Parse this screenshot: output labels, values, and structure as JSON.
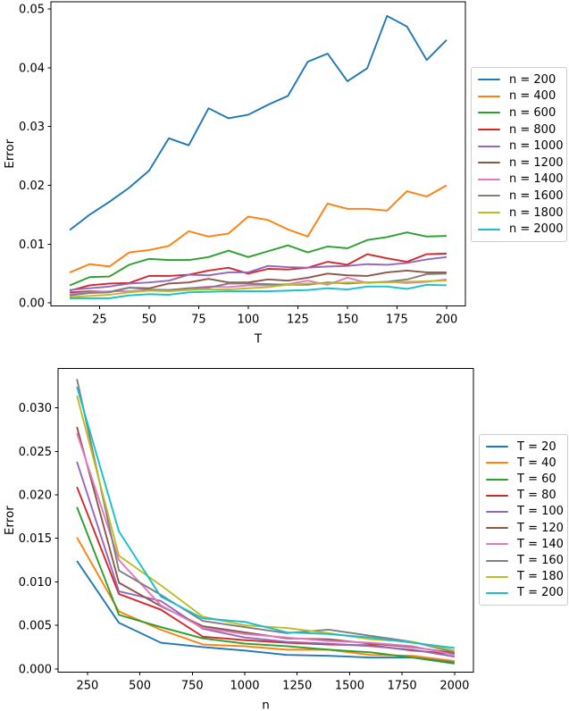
{
  "page": {
    "background": "#ffffff",
    "text_color": "#000000",
    "axis_color": "#000000",
    "legend_border_color": "#cccccc"
  },
  "chart_data": [
    {
      "id": "top",
      "type": "line",
      "title": "",
      "xlabel": "T",
      "ylabel": "Error",
      "grid": false,
      "legend_position": "center right outside",
      "xlim": [
        0.5,
        209.5
      ],
      "ylim": [
        -0.0005,
        0.0512
      ],
      "xticks": {
        "values": [
          25,
          50,
          75,
          100,
          125,
          150,
          175,
          200
        ],
        "labels": [
          "25",
          "50",
          "75",
          "100",
          "125",
          "150",
          "175",
          "200"
        ]
      },
      "yticks": {
        "values": [
          0.0,
          0.01,
          0.02,
          0.03,
          0.04,
          0.05
        ],
        "labels": [
          "0.00",
          "0.01",
          "0.02",
          "0.03",
          "0.04",
          "0.05"
        ]
      },
      "x": [
        10,
        20,
        30,
        40,
        50,
        60,
        70,
        80,
        90,
        100,
        110,
        120,
        130,
        140,
        150,
        160,
        170,
        180,
        190,
        200
      ],
      "series": [
        {
          "name": "n = 200",
          "color": "#1f77b4",
          "values": [
            0.0124,
            0.015,
            0.0172,
            0.0196,
            0.0225,
            0.028,
            0.0268,
            0.0331,
            0.0314,
            0.032,
            0.0337,
            0.0352,
            0.041,
            0.0424,
            0.0377,
            0.0399,
            0.0488,
            0.047,
            0.0413,
            0.0447
          ]
        },
        {
          "name": "n = 400",
          "color": "#ff7f0e",
          "values": [
            0.0052,
            0.0066,
            0.0062,
            0.0086,
            0.009,
            0.0097,
            0.0122,
            0.0113,
            0.0118,
            0.0147,
            0.0141,
            0.0125,
            0.0113,
            0.0169,
            0.016,
            0.016,
            0.0157,
            0.019,
            0.0181,
            0.02
          ]
        },
        {
          "name": "n = 600",
          "color": "#2ca02c",
          "values": [
            0.003,
            0.0044,
            0.0045,
            0.0065,
            0.0075,
            0.0073,
            0.0073,
            0.0078,
            0.0089,
            0.0078,
            0.0088,
            0.0098,
            0.0086,
            0.0096,
            0.0093,
            0.0107,
            0.0112,
            0.012,
            0.0113,
            0.0114
          ]
        },
        {
          "name": "n = 800",
          "color": "#d62728",
          "values": [
            0.0021,
            0.003,
            0.0033,
            0.0034,
            0.0046,
            0.0046,
            0.0048,
            0.0055,
            0.006,
            0.005,
            0.0058,
            0.0057,
            0.006,
            0.007,
            0.0065,
            0.0083,
            0.0076,
            0.007,
            0.0083,
            0.0084
          ]
        },
        {
          "name": "n = 1000",
          "color": "#9467bd",
          "values": [
            0.0022,
            0.0025,
            0.0028,
            0.0033,
            0.0035,
            0.0038,
            0.0048,
            0.0047,
            0.0052,
            0.0052,
            0.0063,
            0.0061,
            0.006,
            0.0062,
            0.0063,
            0.0066,
            0.0065,
            0.0068,
            0.0074,
            0.0078
          ]
        },
        {
          "name": "n = 1200",
          "color": "#8c564b",
          "values": [
            0.0018,
            0.002,
            0.0019,
            0.0026,
            0.0025,
            0.0033,
            0.0035,
            0.0041,
            0.0035,
            0.0035,
            0.004,
            0.0038,
            0.0043,
            0.005,
            0.0047,
            0.0046,
            0.0052,
            0.0055,
            0.0052,
            0.0052
          ]
        },
        {
          "name": "n = 1400",
          "color": "#e377c2",
          "values": [
            0.0015,
            0.0018,
            0.002,
            0.002,
            0.0022,
            0.0022,
            0.0025,
            0.0028,
            0.0027,
            0.003,
            0.003,
            0.0032,
            0.0038,
            0.0031,
            0.0043,
            0.0034,
            0.0036,
            0.0034,
            0.0036,
            0.004
          ]
        },
        {
          "name": "n = 1600",
          "color": "#7f7f7f",
          "values": [
            0.0013,
            0.0017,
            0.0018,
            0.0026,
            0.0023,
            0.0022,
            0.0025,
            0.0026,
            0.0033,
            0.0033,
            0.0032,
            0.0031,
            0.0031,
            0.0035,
            0.0033,
            0.0035,
            0.0036,
            0.004,
            0.0049,
            0.005
          ]
        },
        {
          "name": "n = 1800",
          "color": "#bcbd22",
          "values": [
            0.001,
            0.0012,
            0.0014,
            0.0018,
            0.0021,
            0.002,
            0.0022,
            0.0023,
            0.0023,
            0.0025,
            0.0027,
            0.0031,
            0.0033,
            0.0033,
            0.0035,
            0.0035,
            0.0035,
            0.0036,
            0.0037,
            0.0038
          ]
        },
        {
          "name": "n = 2000",
          "color": "#17becf",
          "values": [
            0.0008,
            0.0008,
            0.0008,
            0.0013,
            0.0015,
            0.0014,
            0.0018,
            0.0019,
            0.002,
            0.002,
            0.002,
            0.0021,
            0.0022,
            0.0025,
            0.0023,
            0.0028,
            0.0028,
            0.0024,
            0.0031,
            0.003
          ]
        }
      ]
    },
    {
      "id": "bottom",
      "type": "line",
      "title": "",
      "xlabel": "n",
      "ylabel": "Error",
      "grid": false,
      "legend_position": "center right outside",
      "xlim": [
        110,
        2090
      ],
      "ylim": [
        -0.0004,
        0.0345
      ],
      "xticks": {
        "values": [
          250,
          500,
          750,
          1000,
          1250,
          1500,
          1750,
          2000
        ],
        "labels": [
          "250",
          "500",
          "750",
          "1000",
          "1250",
          "1500",
          "1750",
          "2000"
        ]
      },
      "yticks": {
        "values": [
          0.0,
          0.005,
          0.01,
          0.015,
          0.02,
          0.025,
          0.03
        ],
        "labels": [
          "0.000",
          "0.005",
          "0.010",
          "0.015",
          "0.020",
          "0.025",
          "0.030"
        ]
      },
      "x": [
        200,
        400,
        600,
        800,
        1000,
        1200,
        1400,
        1600,
        1800,
        2000
      ],
      "series": [
        {
          "name": "T = 20",
          "color": "#1f77b4",
          "values": [
            0.0124,
            0.0053,
            0.003,
            0.0025,
            0.0021,
            0.0016,
            0.0015,
            0.0013,
            0.0013,
            0.0008
          ]
        },
        {
          "name": "T = 40",
          "color": "#ff7f0e",
          "values": [
            0.0151,
            0.0066,
            0.0045,
            0.0028,
            0.0026,
            0.0022,
            0.0022,
            0.0016,
            0.0015,
            0.0009
          ]
        },
        {
          "name": "T = 60",
          "color": "#2ca02c",
          "values": [
            0.0186,
            0.0062,
            0.0048,
            0.0035,
            0.0029,
            0.0026,
            0.0022,
            0.0019,
            0.0013,
            0.0006
          ]
        },
        {
          "name": "T = 80",
          "color": "#d62728",
          "values": [
            0.0209,
            0.0086,
            0.0068,
            0.0037,
            0.0033,
            0.003,
            0.0028,
            0.0027,
            0.0021,
            0.0017
          ]
        },
        {
          "name": "T = 100",
          "color": "#9467bd",
          "values": [
            0.0238,
            0.0089,
            0.0078,
            0.0046,
            0.0036,
            0.0031,
            0.0029,
            0.0026,
            0.0022,
            0.0014
          ]
        },
        {
          "name": "T = 120",
          "color": "#8c564b",
          "values": [
            0.0278,
            0.0099,
            0.0072,
            0.0049,
            0.0042,
            0.0035,
            0.0034,
            0.0029,
            0.0025,
            0.0018
          ]
        },
        {
          "name": "T = 140",
          "color": "#e377c2",
          "values": [
            0.0271,
            0.0125,
            0.0073,
            0.0047,
            0.004,
            0.0036,
            0.0032,
            0.003,
            0.0026,
            0.0016
          ]
        },
        {
          "name": "T = 160",
          "color": "#7f7f7f",
          "values": [
            0.0333,
            0.0113,
            0.0085,
            0.0055,
            0.0048,
            0.0041,
            0.0045,
            0.0038,
            0.0031,
            0.0019
          ]
        },
        {
          "name": "T = 180",
          "color": "#bcbd22",
          "values": [
            0.0314,
            0.013,
            0.0096,
            0.006,
            0.005,
            0.0047,
            0.0041,
            0.0034,
            0.0031,
            0.0021
          ]
        },
        {
          "name": "T = 200",
          "color": "#17becf",
          "values": [
            0.0324,
            0.0158,
            0.0083,
            0.0058,
            0.0054,
            0.0042,
            0.004,
            0.0036,
            0.003,
            0.0024
          ]
        }
      ]
    }
  ]
}
